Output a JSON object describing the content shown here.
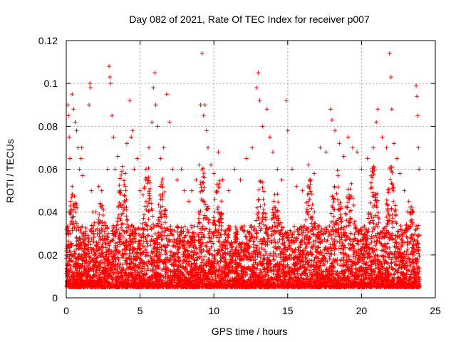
{
  "chart_data": {
    "type": "scatter",
    "title": "Day 082 of 2021, Rate Of TEC Index for receiver p007",
    "xlabel": "GPS time / hours",
    "ylabel": "ROTI / TECUs",
    "xlim": [
      0,
      25
    ],
    "ylim": [
      0,
      0.12
    ],
    "xticks": [
      "0",
      "5",
      "10",
      "15",
      "20",
      "25"
    ],
    "yticks": [
      "0",
      "0.02",
      "0.04",
      "0.06",
      "0.08",
      "0.1",
      "0.12"
    ],
    "grid": true,
    "marker": "+",
    "color": "#ff0000",
    "series": [
      {
        "values_note": "",
        "points": [
          [
            0.05,
            0.012
          ],
          [
            0.1,
            0.09
          ],
          [
            0.15,
            0.085
          ],
          [
            0.2,
            0.075
          ],
          [
            0.25,
            0.065
          ],
          [
            0.3,
            0.03
          ],
          [
            0.35,
            0.02
          ],
          [
            0.4,
            0.095
          ],
          [
            0.5,
            0.088
          ],
          [
            0.6,
            0.082
          ],
          [
            0.7,
            0.078
          ],
          [
            0.8,
            0.07
          ],
          [
            0.9,
            0.06
          ],
          [
            0.3,
            0.045
          ],
          [
            0.4,
            0.052
          ],
          [
            0.5,
            0.038
          ],
          [
            1.0,
            0.065
          ],
          [
            1.05,
            0.07
          ],
          [
            1.1,
            0.057
          ],
          [
            1.2,
            0.022
          ],
          [
            1.3,
            0.03
          ],
          [
            1.5,
            0.028
          ],
          [
            1.55,
            0.09
          ],
          [
            1.6,
            0.1
          ],
          [
            1.65,
            0.098
          ],
          [
            1.7,
            0.05
          ],
          [
            1.8,
            0.04
          ],
          [
            1.9,
            0.035
          ],
          [
            2.0,
            0.04
          ],
          [
            2.2,
            0.052
          ],
          [
            2.3,
            0.044
          ],
          [
            2.4,
            0.05
          ],
          [
            2.6,
            0.035
          ],
          [
            2.8,
            0.06
          ],
          [
            2.9,
            0.108
          ],
          [
            2.95,
            0.103
          ],
          [
            3.0,
            0.1
          ],
          [
            3.1,
            0.085
          ],
          [
            3.2,
            0.075
          ],
          [
            3.3,
            0.06
          ],
          [
            3.5,
            0.066
          ],
          [
            3.7,
            0.05
          ],
          [
            4.0,
            0.058
          ],
          [
            4.1,
            0.072
          ],
          [
            4.3,
            0.092
          ],
          [
            4.4,
            0.075
          ],
          [
            4.5,
            0.078
          ],
          [
            4.6,
            0.06
          ],
          [
            4.8,
            0.065
          ],
          [
            5.0,
            0.05
          ],
          [
            5.2,
            0.048
          ],
          [
            5.4,
            0.06
          ],
          [
            5.6,
            0.07
          ],
          [
            5.8,
            0.082
          ],
          [
            5.9,
            0.098
          ],
          [
            6.0,
            0.105
          ],
          [
            6.05,
            0.09
          ],
          [
            6.2,
            0.08
          ],
          [
            6.4,
            0.065
          ],
          [
            6.6,
            0.07
          ],
          [
            6.8,
            0.095
          ],
          [
            7.0,
            0.082
          ],
          [
            7.2,
            0.06
          ],
          [
            7.5,
            0.055
          ],
          [
            7.8,
            0.06
          ],
          [
            8.0,
            0.05
          ],
          [
            8.3,
            0.045
          ],
          [
            8.5,
            0.05
          ],
          [
            8.8,
            0.055
          ],
          [
            9.0,
            0.062
          ],
          [
            9.1,
            0.09
          ],
          [
            9.2,
            0.114
          ],
          [
            9.3,
            0.085
          ],
          [
            9.4,
            0.09
          ],
          [
            9.5,
            0.078
          ],
          [
            9.6,
            0.07
          ],
          [
            9.8,
            0.062
          ],
          [
            10.0,
            0.058
          ],
          [
            10.3,
            0.068
          ],
          [
            10.6,
            0.055
          ],
          [
            11.0,
            0.05
          ],
          [
            11.4,
            0.06
          ],
          [
            11.8,
            0.055
          ],
          [
            12.2,
            0.065
          ],
          [
            12.6,
            0.07
          ],
          [
            12.9,
            0.098
          ],
          [
            13.0,
            0.105
          ],
          [
            13.1,
            0.092
          ],
          [
            13.3,
            0.08
          ],
          [
            13.6,
            0.088
          ],
          [
            13.8,
            0.075
          ],
          [
            14.0,
            0.068
          ],
          [
            14.3,
            0.06
          ],
          [
            14.6,
            0.055
          ],
          [
            14.9,
            0.092
          ],
          [
            15.0,
            0.078
          ],
          [
            15.3,
            0.06
          ],
          [
            15.6,
            0.052
          ],
          [
            16.0,
            0.05
          ],
          [
            16.4,
            0.062
          ],
          [
            16.8,
            0.058
          ],
          [
            17.2,
            0.07
          ],
          [
            17.6,
            0.068
          ],
          [
            17.9,
            0.088
          ],
          [
            18.0,
            0.083
          ],
          [
            18.2,
            0.078
          ],
          [
            18.5,
            0.072
          ],
          [
            18.8,
            0.066
          ],
          [
            19.1,
            0.075
          ],
          [
            19.4,
            0.07
          ],
          [
            19.7,
            0.068
          ],
          [
            20.0,
            0.06
          ],
          [
            20.4,
            0.065
          ],
          [
            20.8,
            0.07
          ],
          [
            21.0,
            0.082
          ],
          [
            21.1,
            0.088
          ],
          [
            21.4,
            0.075
          ],
          [
            21.7,
            0.07
          ],
          [
            21.9,
            0.114
          ],
          [
            22.0,
            0.103
          ],
          [
            22.05,
            0.088
          ],
          [
            22.2,
            0.072
          ],
          [
            22.4,
            0.065
          ],
          [
            22.6,
            0.058
          ],
          [
            22.9,
            0.05
          ],
          [
            23.2,
            0.045
          ],
          [
            23.5,
            0.04
          ],
          [
            23.7,
            0.099
          ],
          [
            23.75,
            0.094
          ],
          [
            23.8,
            0.085
          ],
          [
            23.85,
            0.07
          ],
          [
            23.9,
            0.06
          ]
        ]
      }
    ]
  }
}
